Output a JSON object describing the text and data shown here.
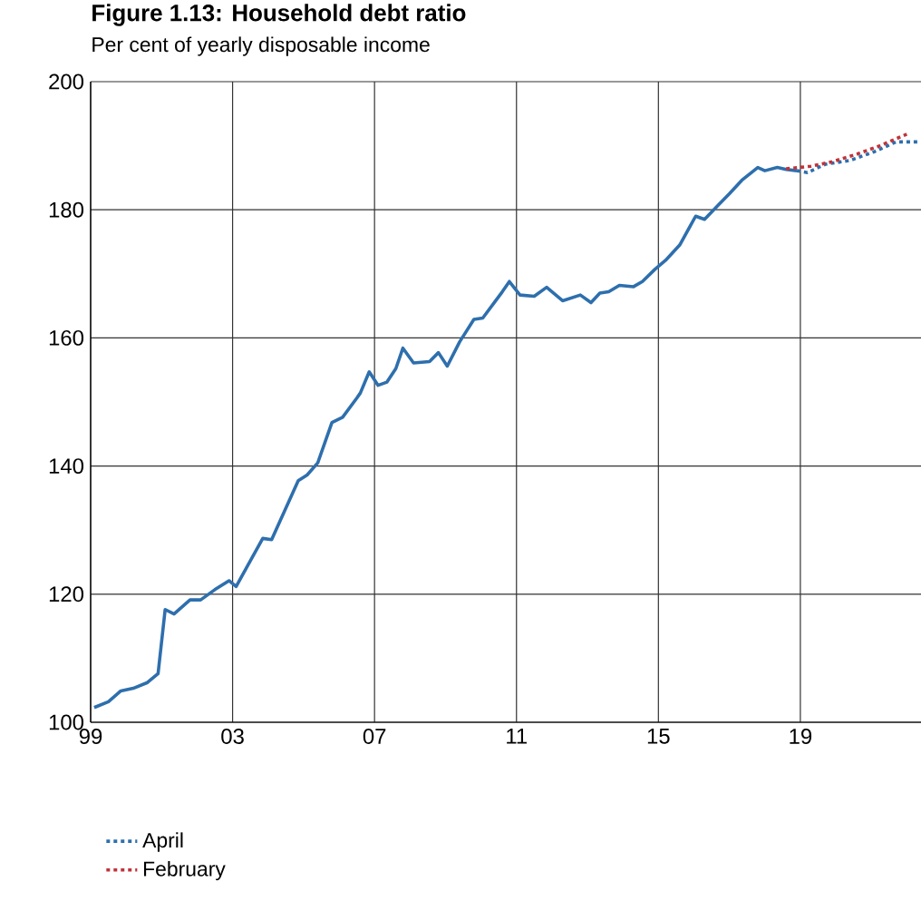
{
  "chart_data": {
    "type": "line",
    "title": "Figure 1.13: Household debt ratio",
    "subtitle": "Per cent of yearly disposable income",
    "xlim": [
      1999,
      2022.4
    ],
    "xticks": [
      {
        "value": 1999,
        "label": "99"
      },
      {
        "value": 2003,
        "label": "03"
      },
      {
        "value": 2007,
        "label": "07"
      },
      {
        "value": 2011,
        "label": "11"
      },
      {
        "value": 2015,
        "label": "15"
      },
      {
        "value": 2019,
        "label": "19"
      }
    ],
    "ylim": [
      100,
      200
    ],
    "yticks": [
      100,
      120,
      140,
      160,
      180,
      200
    ],
    "grid": true,
    "legend": "bottom",
    "marker": "none",
    "series": [
      {
        "color": "#2e6fad",
        "line_style": "solid",
        "x": [
          1999.1,
          1999.5,
          1999.85,
          2000.2,
          2000.6,
          2000.9,
          2001.1,
          2001.35,
          2001.8,
          2002.1,
          2002.5,
          2002.9,
          2003.1,
          2003.4,
          2003.85,
          2004.1,
          2004.85,
          2005.1,
          2005.4,
          2005.8,
          2006.1,
          2006.5,
          2006.6,
          2006.85,
          2007.1,
          2007.35,
          2007.6,
          2007.8,
          2008.1,
          2008.55,
          2008.8,
          2009.05,
          2009.4,
          2009.8,
          2010.05,
          2010.4,
          2010.6,
          2010.8,
          2011.1,
          2011.5,
          2011.85,
          2012.3,
          2012.8,
          2013.1,
          2013.35,
          2013.6,
          2013.9,
          2014.3,
          2014.55,
          2014.9,
          2015.2,
          2015.6,
          2016.05,
          2016.3,
          2016.7,
          2017.0,
          2017.35,
          2017.8,
          2018.0,
          2018.35,
          2018.6,
          2018.9
        ],
        "values": [
          102.3,
          103.2,
          104.9,
          105.3,
          106.2,
          107.6,
          117.6,
          116.9,
          119.1,
          119.1,
          120.7,
          122.1,
          121.2,
          124.2,
          128.7,
          128.5,
          137.7,
          138.6,
          140.5,
          146.8,
          147.6,
          150.6,
          151.4,
          154.7,
          152.6,
          153.1,
          155.2,
          158.4,
          156.1,
          156.3,
          157.7,
          155.6,
          159.4,
          162.9,
          163.1,
          165.7,
          167.2,
          168.8,
          166.7,
          166.5,
          167.9,
          165.8,
          166.7,
          165.5,
          167.0,
          167.2,
          168.2,
          168.0,
          168.8,
          170.7,
          172.1,
          174.5,
          179.0,
          178.5,
          180.8,
          182.5,
          184.6,
          186.6,
          186.1,
          186.6,
          186.3,
          186.1
        ]
      },
      {
        "name": "April",
        "color": "#2e6fad",
        "line_style": "dotted",
        "x": [
          2018.9,
          2019.2,
          2019.7,
          2020.4,
          2021.1,
          2021.7,
          2022.3
        ],
        "values": [
          186.1,
          185.8,
          187.1,
          187.7,
          189.1,
          190.6,
          190.6
        ]
      },
      {
        "name": "February",
        "color": "#c0333a",
        "line_style": "dotted",
        "x": [
          2018.6,
          2019.3,
          2019.9,
          2020.6,
          2021.2,
          2022.0
        ],
        "values": [
          186.4,
          186.8,
          187.5,
          188.7,
          189.9,
          191.8
        ]
      }
    ]
  }
}
